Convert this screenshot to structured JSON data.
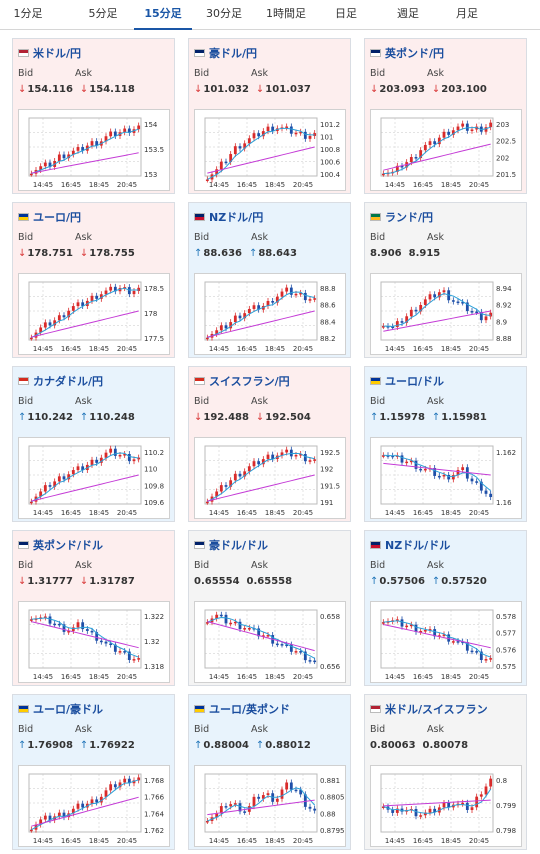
{
  "tabs": [
    "1分足",
    "5分足",
    "15分足",
    "30分足",
    "1時間足",
    "日足",
    "週足",
    "月足"
  ],
  "active_tab": 2,
  "labels": {
    "bid": "Bid",
    "ask": "Ask"
  },
  "x_ticks": [
    "14:45",
    "16:45",
    "18:45",
    "20:45"
  ],
  "cards": [
    {
      "pair": "米ドル/円",
      "flag": "us-jp",
      "dir": "down",
      "bid": "154.116",
      "ask": "154.118",
      "y_ticks": [
        "154",
        "153.5",
        "153"
      ]
    },
    {
      "pair": "豪ドル/円",
      "flag": "au-jp",
      "dir": "down",
      "bid": "101.032",
      "ask": "101.037",
      "y_ticks": [
        "101.2",
        "101",
        "100.8",
        "100.6",
        "100.4"
      ]
    },
    {
      "pair": "英ポンド/円",
      "flag": "gb-jp",
      "dir": "down",
      "bid": "203.093",
      "ask": "203.100",
      "y_ticks": [
        "203",
        "202.5",
        "202",
        "201.5"
      ]
    },
    {
      "pair": "ユーロ/円",
      "flag": "eu-jp",
      "dir": "down",
      "bid": "178.751",
      "ask": "178.755",
      "y_ticks": [
        "178.5",
        "178",
        "177.5"
      ]
    },
    {
      "pair": "NZドル/円",
      "flag": "nz-jp",
      "dir": "up",
      "bid": "88.636",
      "ask": "88.643",
      "y_ticks": [
        "88.8",
        "88.6",
        "88.4",
        "88.2"
      ]
    },
    {
      "pair": "ランド/円",
      "flag": "za-jp",
      "dir": "flat",
      "bid": "8.906",
      "ask": "8.915",
      "y_ticks": [
        "8.94",
        "8.92",
        "8.9",
        "8.88"
      ]
    },
    {
      "pair": "カナダドル/円",
      "flag": "ca-jp",
      "dir": "up",
      "bid": "110.242",
      "ask": "110.248",
      "y_ticks": [
        "110.2",
        "110",
        "109.8",
        "109.6"
      ]
    },
    {
      "pair": "スイスフラン/円",
      "flag": "ch-jp",
      "dir": "down",
      "bid": "192.488",
      "ask": "192.504",
      "y_ticks": [
        "192.5",
        "192",
        "191.5",
        "191"
      ]
    },
    {
      "pair": "ユーロ/ドル",
      "flag": "eu-us",
      "dir": "up",
      "bid": "1.15978",
      "ask": "1.15981",
      "y_ticks": [
        "1.162",
        "1.16"
      ]
    },
    {
      "pair": "英ポンド/ドル",
      "flag": "gb-us",
      "dir": "down",
      "bid": "1.31777",
      "ask": "1.31787",
      "y_ticks": [
        "1.322",
        "1.32",
        "1.318"
      ]
    },
    {
      "pair": "豪ドル/ドル",
      "flag": "au-us",
      "dir": "flat",
      "bid": "0.65554",
      "ask": "0.65558",
      "y_ticks": [
        "0.658",
        "0.656"
      ]
    },
    {
      "pair": "NZドル/ドル",
      "flag": "nz-us",
      "dir": "up",
      "bid": "0.57506",
      "ask": "0.57520",
      "y_ticks": [
        "0.578",
        "0.577",
        "0.576",
        "0.575"
      ]
    },
    {
      "pair": "ユーロ/豪ドル",
      "flag": "eu-au",
      "dir": "up",
      "bid": "1.76908",
      "ask": "1.76922",
      "y_ticks": [
        "1.768",
        "1.766",
        "1.764",
        "1.762"
      ]
    },
    {
      "pair": "ユーロ/英ポンド",
      "flag": "eu-gb",
      "dir": "up",
      "bid": "0.88004",
      "ask": "0.88012",
      "y_ticks": [
        "0.881",
        "0.8805",
        "0.88",
        "0.8795"
      ]
    },
    {
      "pair": "米ドル/スイスフラン",
      "flag": "us-ch",
      "dir": "flat",
      "bid": "0.80063",
      "ask": "0.80078",
      "y_ticks": [
        "0.8",
        "0.799",
        "0.798"
      ]
    }
  ],
  "colors": {
    "up_candle": "#d92b2b",
    "down_candle": "#1f4fa8",
    "ma_short": "#2aa0d8",
    "ma_long": "#c43bd6",
    "up_arrow": "#1f74b8",
    "down_arrow": "#d93a3a"
  }
}
